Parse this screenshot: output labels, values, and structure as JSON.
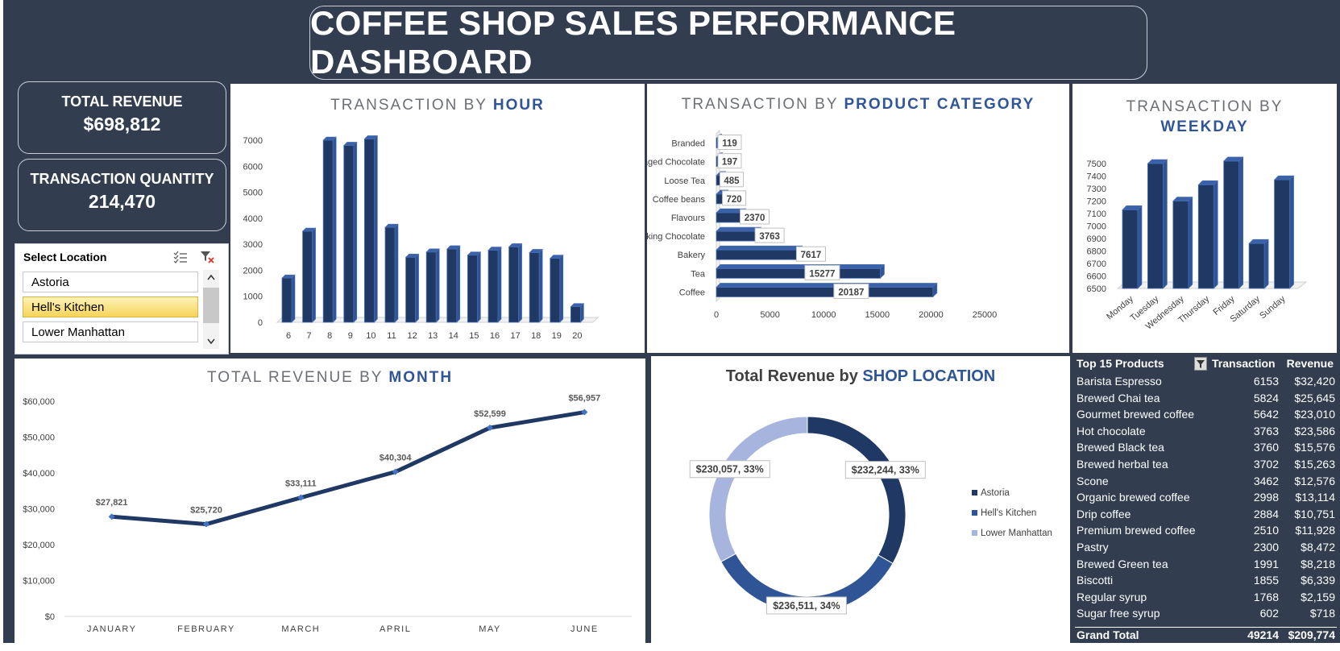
{
  "dashboard": {
    "title": "COFFEE SHOP SALES PERFORMANCE DASHBOARD"
  },
  "kpis": {
    "revenue_label": "TOTAL REVENUE",
    "revenue_value": "$698,812",
    "qty_label": "TRANSACTION QUANTITY",
    "qty_value": "214,470"
  },
  "slicer": {
    "header": "Select Location",
    "items": [
      "Astoria",
      "Hell's Kitchen",
      "Lower Manhattan"
    ],
    "selected": "Hell's Kitchen"
  },
  "chart_titles": {
    "hour_plain": "TRANSACTION BY ",
    "hour_bold": "HOUR",
    "cat_plain": "TRANSACTION BY ",
    "cat_bold": "PRODUCT CATEGORY",
    "weekday_plain": "TRANSACTION BY",
    "weekday_bold": "WEEKDAY",
    "month_plain": "TOTAL REVENUE BY ",
    "month_bold": "MONTH",
    "loc_plain": "Total Revenue by ",
    "loc_bold": "SHOP LOCATION"
  },
  "colors": {
    "background": "#323e4f",
    "bar": "#1f3864",
    "bar_side": "#2f5597",
    "line": "#1f3864",
    "marker": "#4472c4",
    "astoria": "#1f3864",
    "hells_kitchen": "#2f5597",
    "lower_manhattan": "#a6b4de"
  },
  "chart_data": [
    {
      "type": "bar",
      "categories": [
        "6",
        "7",
        "8",
        "9",
        "10",
        "11",
        "12",
        "13",
        "14",
        "15",
        "16",
        "17",
        "18",
        "19",
        "20"
      ],
      "values": [
        1700,
        3500,
        7000,
        6800,
        7050,
        3650,
        2500,
        2700,
        2820,
        2580,
        2770,
        2900,
        2680,
        2460,
        600
      ],
      "ylim": [
        0,
        7000
      ],
      "yticks": [
        "0",
        "1000",
        "2000",
        "3000",
        "4000",
        "5000",
        "6000",
        "7000"
      ],
      "grid": false
    },
    {
      "type": "bar",
      "orientation": "horizontal",
      "categories": [
        "Branded",
        "Packaged Chocolate",
        "Loose Tea",
        "Coffee beans",
        "Flavours",
        "Drinking Chocolate",
        "Bakery",
        "Tea",
        "Coffee"
      ],
      "values": [
        119,
        197,
        485,
        720,
        2370,
        3763,
        7617,
        15277,
        20187
      ],
      "xlim": [
        0,
        25000
      ],
      "xticks": [
        "0",
        "5000",
        "10000",
        "15000",
        "20000",
        "25000"
      ]
    },
    {
      "type": "bar",
      "categories": [
        "Monday",
        "Tuesday",
        "Wednesday",
        "Thursday",
        "Friday",
        "Saturday",
        "Sunday"
      ],
      "values": [
        7130,
        7500,
        7200,
        7330,
        7520,
        6860,
        7370
      ],
      "ylim": [
        6500,
        7500
      ],
      "yticks": [
        "6500",
        "6600",
        "6700",
        "6800",
        "6900",
        "7000",
        "7100",
        "7200",
        "7300",
        "7400",
        "7500"
      ]
    },
    {
      "type": "line",
      "categories": [
        "JANUARY",
        "FEBRUARY",
        "MARCH",
        "APRIL",
        "MAY",
        "JUNE"
      ],
      "values": [
        27821,
        25720,
        33111,
        40304,
        52599,
        56957
      ],
      "labels": [
        "$27,821",
        "$25,720",
        "$33,111",
        "$40,304",
        "$52,599",
        "$56,957"
      ],
      "ylim": [
        0,
        60000
      ],
      "yticks": [
        "$0",
        "$10,000",
        "$20,000",
        "$30,000",
        "$40,000",
        "$50,000",
        "$60,000"
      ]
    },
    {
      "type": "pie",
      "donut": true,
      "series": [
        {
          "name": "Astoria",
          "value": 232244,
          "label": "$232,244, 33%"
        },
        {
          "name": "Hell's Kitchen",
          "value": 236511,
          "label": "$236,511, 34%"
        },
        {
          "name": "Lower Manhattan",
          "value": 230057,
          "label": "$230,057, 33%"
        }
      ],
      "legend": "right"
    },
    {
      "type": "table",
      "headers": [
        "Top 15 Products",
        "Transaction",
        "Revenue"
      ],
      "rows": [
        [
          "Barista Espresso",
          "6153",
          "$32,420"
        ],
        [
          "Brewed Chai tea",
          "5824",
          "$25,645"
        ],
        [
          "Gourmet brewed coffee",
          "5642",
          "$23,010"
        ],
        [
          "Hot chocolate",
          "3763",
          "$23,586"
        ],
        [
          "Brewed Black tea",
          "3760",
          "$15,576"
        ],
        [
          "Brewed herbal tea",
          "3702",
          "$15,263"
        ],
        [
          "Scone",
          "3462",
          "$12,576"
        ],
        [
          "Organic brewed coffee",
          "2998",
          "$13,114"
        ],
        [
          "Drip coffee",
          "2884",
          "$10,751"
        ],
        [
          "Premium brewed coffee",
          "2510",
          "$11,928"
        ],
        [
          "Pastry",
          "2300",
          "$8,472"
        ],
        [
          "Brewed Green tea",
          "1991",
          "$8,218"
        ],
        [
          "Biscotti",
          "1855",
          "$6,339"
        ],
        [
          "Regular syrup",
          "1768",
          "$2,159"
        ],
        [
          "Sugar free syrup",
          "602",
          "$718"
        ]
      ],
      "total": [
        "Grand Total",
        "49214",
        "$209,774"
      ]
    }
  ]
}
